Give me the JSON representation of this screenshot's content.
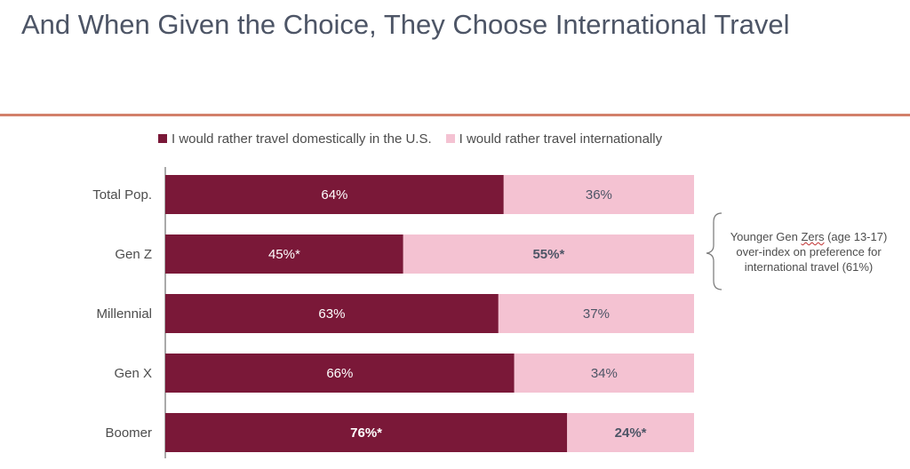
{
  "title": "And When Given the Choice, They Choose International Travel",
  "colors": {
    "domestic": "#7a1838",
    "international": "#f4c2d2",
    "rule": "#d2806a"
  },
  "chart_data": {
    "type": "bar",
    "orientation": "horizontal",
    "stacked": true,
    "categories": [
      "Total Pop.",
      "Gen Z",
      "Millennial",
      "Gen X",
      "Boomer"
    ],
    "series": [
      {
        "name": "I would rather travel domestically in the U.S.",
        "values": [
          64,
          45,
          63,
          66,
          76
        ],
        "labels": [
          "64%",
          "45%*",
          "63%",
          "66%",
          "76%*"
        ],
        "bold": [
          false,
          false,
          false,
          false,
          true
        ]
      },
      {
        "name": "I would rather travel internationally",
        "values": [
          36,
          55,
          37,
          34,
          24
        ],
        "labels": [
          "36%",
          "55%*",
          "37%",
          "34%",
          "24%*"
        ],
        "bold": [
          false,
          true,
          false,
          false,
          true
        ]
      }
    ],
    "xlim": [
      0,
      100
    ],
    "legend": "top",
    "grid": false
  },
  "annotation": {
    "line1_pre": "Younger Gen ",
    "line1_flag": "Zers",
    "line1_post": " (age 13-17)",
    "line2": "over-index on preference for",
    "line3": "international travel (61%)"
  }
}
